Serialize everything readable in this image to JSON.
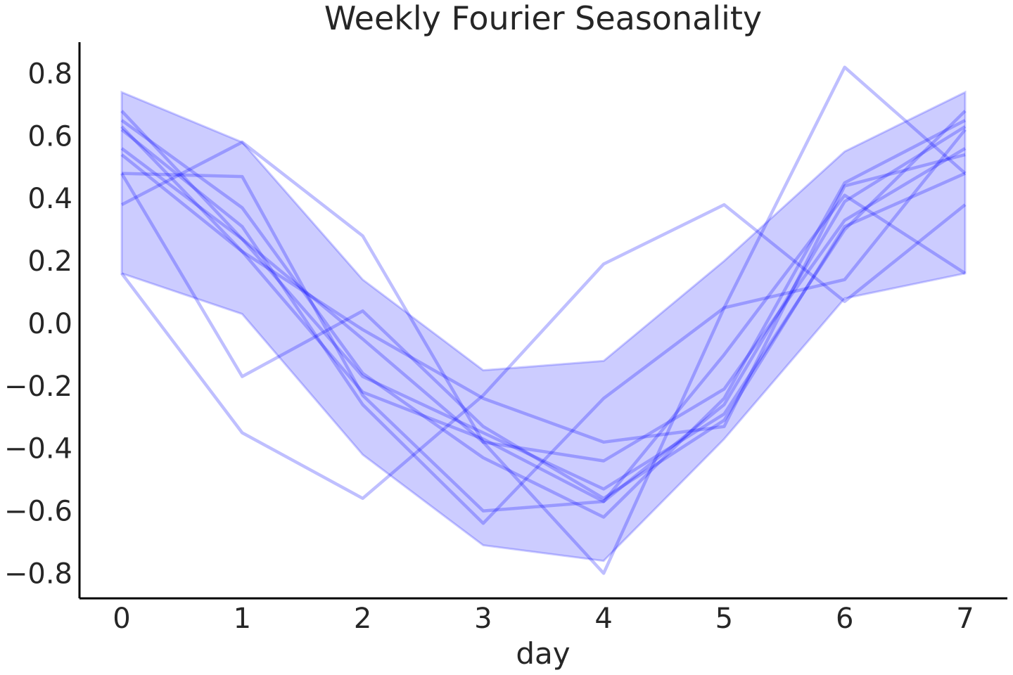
{
  "chart_data": {
    "type": "line",
    "title": "Weekly Fourier Seasonality",
    "xlabel": "day",
    "ylabel": "",
    "x": [
      0,
      1,
      2,
      3,
      4,
      5,
      6,
      7
    ],
    "xlim": [
      -0.35,
      7.35
    ],
    "ylim": [
      -0.88,
      0.9
    ],
    "xticks": [
      "0",
      "1",
      "2",
      "3",
      "4",
      "5",
      "6",
      "7"
    ],
    "yticks": [
      "−0.8",
      "−0.6",
      "−0.4",
      "−0.2",
      "0.0",
      "0.2",
      "0.4",
      "0.6",
      "0.8"
    ],
    "ytick_values": [
      -0.8,
      -0.6,
      -0.4,
      -0.2,
      0.0,
      0.2,
      0.4,
      0.6,
      0.8
    ],
    "band": {
      "upper": [
        0.74,
        0.58,
        0.14,
        -0.15,
        -0.12,
        0.2,
        0.55,
        0.74
      ],
      "lower": [
        0.16,
        0.03,
        -0.42,
        -0.71,
        -0.76,
        -0.37,
        0.08,
        0.16
      ]
    },
    "series": [
      {
        "values": [
          0.68,
          0.27,
          -0.17,
          -0.35,
          -0.53,
          -0.29,
          0.3,
          0.68
        ]
      },
      {
        "values": [
          0.65,
          0.37,
          -0.16,
          -0.43,
          -0.62,
          -0.24,
          0.45,
          0.65
        ]
      },
      {
        "values": [
          0.63,
          0.23,
          -0.22,
          -0.37,
          -0.57,
          -0.26,
          0.39,
          0.63
        ]
      },
      {
        "values": [
          0.62,
          0.31,
          -0.26,
          -0.64,
          -0.24,
          0.05,
          0.14,
          0.62
        ]
      },
      {
        "values": [
          0.56,
          0.27,
          -0.05,
          -0.38,
          -0.44,
          -0.21,
          0.33,
          0.56
        ]
      },
      {
        "values": [
          0.54,
          0.23,
          -0.02,
          -0.24,
          -0.38,
          -0.33,
          0.44,
          0.54
        ]
      },
      {
        "values": [
          0.48,
          0.47,
          -0.23,
          -0.6,
          -0.57,
          -0.1,
          0.41,
          0.16
        ]
      },
      {
        "values": [
          0.38,
          0.58,
          0.28,
          -0.38,
          -0.8,
          0.05,
          0.82,
          0.48
        ]
      },
      {
        "values": [
          0.16,
          -0.35,
          -0.56,
          -0.23,
          0.19,
          0.38,
          0.07,
          0.38
        ]
      },
      {
        "values": [
          0.48,
          -0.17,
          0.04,
          -0.33,
          -0.56,
          -0.31,
          0.31,
          0.48
        ]
      }
    ],
    "grid": false,
    "legend": "none",
    "colors": {
      "line": "#0000ff",
      "band": "#0000ff",
      "axis": "#000000",
      "text": "#262626"
    }
  }
}
